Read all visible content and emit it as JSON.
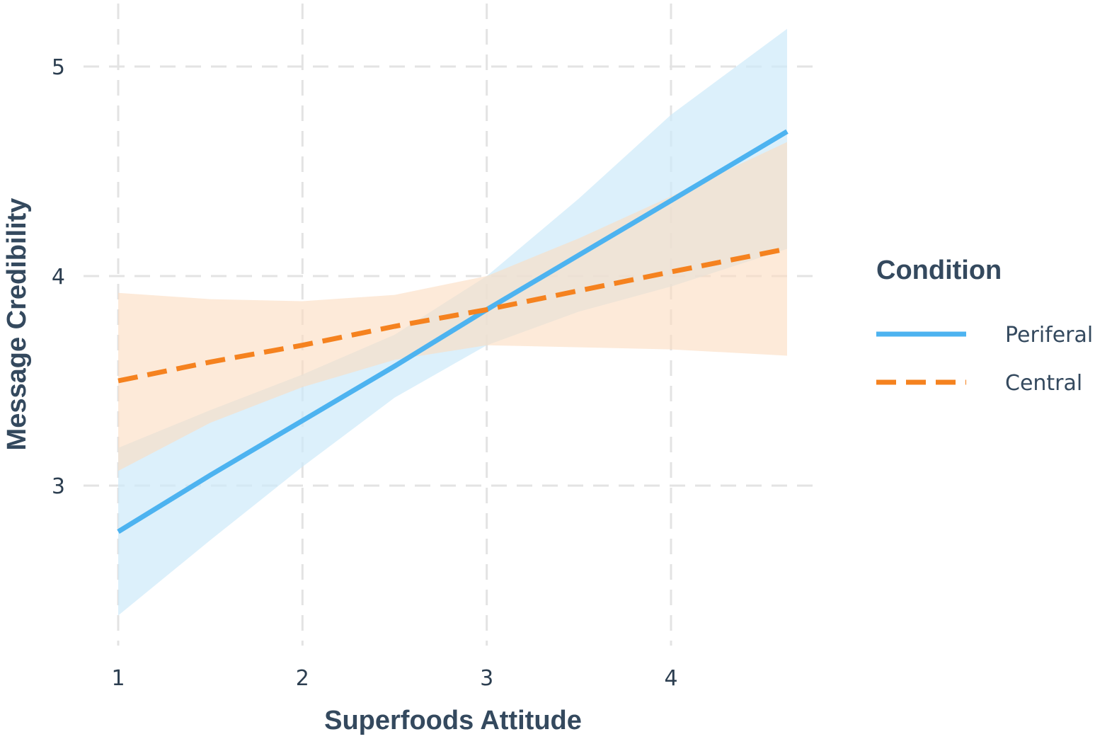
{
  "chart_data": {
    "type": "line",
    "xlabel": "Superfoods Attitude",
    "ylabel": "Message Credibility",
    "xlim": [
      1,
      4.63
    ],
    "ylim": [
      2.25,
      5.2
    ],
    "x_ticks": [
      "1",
      "2",
      "3",
      "4"
    ],
    "y_ticks": [
      "3",
      "4",
      "5"
    ],
    "grid": true,
    "grid_style": "dashed",
    "legend": {
      "title": "Condition",
      "placement": "right"
    },
    "series": [
      {
        "name": "Periferal",
        "color": "#4db3f0",
        "band_color": "#cde9fa",
        "line_style": "solid",
        "x": [
          1,
          1.5,
          2,
          2.5,
          3,
          3.5,
          4,
          4.63
        ],
        "y": [
          2.78,
          3.05,
          3.31,
          3.57,
          3.84,
          4.1,
          4.36,
          4.69
        ],
        "lower": [
          2.38,
          2.74,
          3.09,
          3.42,
          3.67,
          3.83,
          3.95,
          4.13
        ],
        "upper": [
          3.18,
          3.36,
          3.53,
          3.72,
          4.0,
          4.37,
          4.77,
          5.18
        ]
      },
      {
        "name": "Central",
        "color": "#f5821f",
        "band_color": "#fcdcbf",
        "line_style": "dashed",
        "x": [
          1,
          1.5,
          2,
          2.5,
          3,
          3.5,
          4,
          4.63
        ],
        "y": [
          3.5,
          3.59,
          3.67,
          3.76,
          3.84,
          3.93,
          4.02,
          4.13
        ],
        "lower": [
          3.07,
          3.3,
          3.47,
          3.6,
          3.67,
          3.66,
          3.65,
          3.62
        ],
        "upper": [
          3.92,
          3.89,
          3.88,
          3.91,
          4.0,
          4.18,
          4.38,
          4.64
        ]
      }
    ]
  }
}
